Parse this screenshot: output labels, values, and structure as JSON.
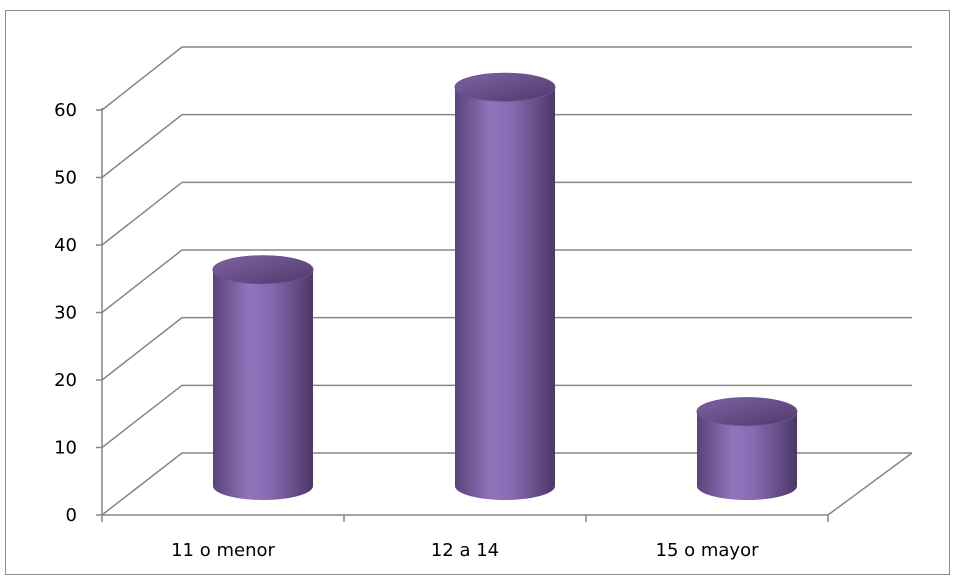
{
  "chart_data": {
    "type": "bar",
    "style": "3d-cylinder",
    "categories": [
      "11 o menor",
      "12 a 14",
      "15 o mayor"
    ],
    "values": [
      32,
      59,
      11
    ],
    "title": "",
    "xlabel": "",
    "ylabel": "",
    "ylim": [
      0,
      60
    ],
    "yticks": [
      "0",
      "10",
      "20",
      "30",
      "40",
      "50",
      "60"
    ],
    "grid": true,
    "legend": "none",
    "colors": {
      "bar": "#8064a2",
      "grid": "#868686"
    }
  }
}
